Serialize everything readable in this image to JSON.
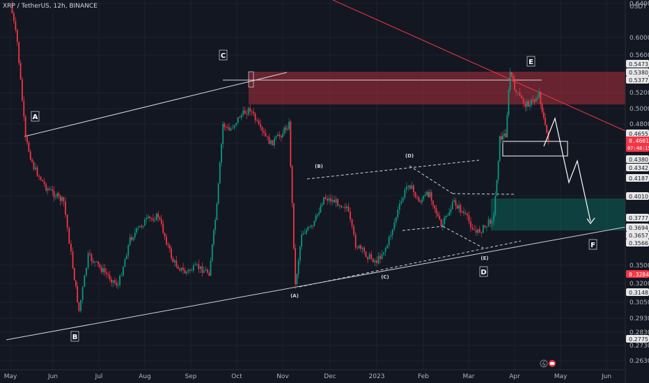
{
  "header": {
    "symbol_title": "XRP / TetherUS, 12h, BINANCE",
    "currency": "USDT"
  },
  "price_tags": {
    "last_price": "0.4601",
    "countdown": "07:48:15",
    "extra_red": "0.3284",
    "gray": [
      "0.5473",
      "0.5380",
      "0.5377",
      "0.4655",
      "0.4380",
      "0.4342",
      "0.4187",
      "0.4010",
      "0.3777",
      "0.3694",
      "0.3657",
      "0.3566",
      "0.3148",
      "0.2775"
    ]
  },
  "toolbar": {
    "flash_icon": "lightning-icon",
    "record_icon": "record-icon"
  },
  "chart_data": {
    "type": "candlestick",
    "title": "XRP / TetherUS, 12h, BINANCE",
    "xlabel": "",
    "ylabel": "USDT",
    "ylim": [
      0.26,
      0.65
    ],
    "x_tick_labels": [
      "May",
      "Jun",
      "Jul",
      "Aug",
      "Sep",
      "Oct",
      "Nov",
      "Dec",
      "2023",
      "Feb",
      "Mar",
      "Apr",
      "May",
      "Jun"
    ],
    "y_tick_labels": [
      "0.6400",
      "0.6000",
      "0.5600",
      "0.5200",
      "0.5000",
      "0.4800",
      "0.4520",
      "0.3900",
      "0.3500",
      "0.3200",
      "0.3050",
      "0.2930",
      "0.2830",
      "0.2730",
      "0.2630"
    ],
    "grid": true,
    "zones": [
      {
        "name": "resistance",
        "color": "#f23645",
        "from": 0.5075,
        "to": 0.5435
      },
      {
        "name": "support",
        "color": "#089981",
        "from": 0.3715,
        "to": 0.3985
      }
    ],
    "wave_labels": {
      "major": [
        "A",
        "B",
        "C",
        "D",
        "E",
        "F"
      ],
      "minor": [
        "(A)",
        "(B)",
        "(C)",
        "(D)",
        "(E)"
      ]
    },
    "price_path": [
      {
        "x": "2022-05-01",
        "c": 0.64
      },
      {
        "x": "2022-05-06",
        "c": 0.59
      },
      {
        "x": "2022-05-12",
        "c": 0.46
      },
      {
        "x": "2022-05-18",
        "c": 0.43
      },
      {
        "x": "2022-05-27",
        "c": 0.41
      },
      {
        "x": "2022-06-08",
        "c": 0.395
      },
      {
        "x": "2022-06-14",
        "c": 0.335
      },
      {
        "x": "2022-06-18",
        "c": 0.3
      },
      {
        "x": "2022-06-24",
        "c": 0.345
      },
      {
        "x": "2022-07-05",
        "c": 0.33
      },
      {
        "x": "2022-07-14",
        "c": 0.32
      },
      {
        "x": "2022-07-22",
        "c": 0.36
      },
      {
        "x": "2022-08-01",
        "c": 0.375
      },
      {
        "x": "2022-08-10",
        "c": 0.38
      },
      {
        "x": "2022-08-20",
        "c": 0.34
      },
      {
        "x": "2022-08-28",
        "c": 0.33
      },
      {
        "x": "2022-09-05",
        "c": 0.335
      },
      {
        "x": "2022-09-13",
        "c": 0.33
      },
      {
        "x": "2022-09-18",
        "c": 0.39
      },
      {
        "x": "2022-09-22",
        "c": 0.48
      },
      {
        "x": "2022-09-26",
        "c": 0.47
      },
      {
        "x": "2022-10-03",
        "c": 0.49
      },
      {
        "x": "2022-10-10",
        "c": 0.5
      },
      {
        "x": "2022-10-17",
        "c": 0.47
      },
      {
        "x": "2022-10-24",
        "c": 0.455
      },
      {
        "x": "2022-10-31",
        "c": 0.465
      },
      {
        "x": "2022-11-05",
        "c": 0.48
      },
      {
        "x": "2022-11-09",
        "c": 0.32
      },
      {
        "x": "2022-11-13",
        "c": 0.365
      },
      {
        "x": "2022-11-20",
        "c": 0.37
      },
      {
        "x": "2022-11-27",
        "c": 0.4
      },
      {
        "x": "2022-12-05",
        "c": 0.395
      },
      {
        "x": "2022-12-12",
        "c": 0.39
      },
      {
        "x": "2022-12-18",
        "c": 0.355
      },
      {
        "x": "2022-12-26",
        "c": 0.345
      },
      {
        "x": "2023-01-01",
        "c": 0.34
      },
      {
        "x": "2023-01-08",
        "c": 0.355
      },
      {
        "x": "2023-01-15",
        "c": 0.385
      },
      {
        "x": "2023-01-22",
        "c": 0.415
      },
      {
        "x": "2023-01-29",
        "c": 0.395
      },
      {
        "x": "2023-02-05",
        "c": 0.405
      },
      {
        "x": "2023-02-12",
        "c": 0.37
      },
      {
        "x": "2023-02-20",
        "c": 0.395
      },
      {
        "x": "2023-02-27",
        "c": 0.38
      },
      {
        "x": "2023-03-06",
        "c": 0.365
      },
      {
        "x": "2023-03-12",
        "c": 0.37
      },
      {
        "x": "2023-03-18",
        "c": 0.38
      },
      {
        "x": "2023-03-22",
        "c": 0.46
      },
      {
        "x": "2023-03-26",
        "c": 0.465
      },
      {
        "x": "2023-03-29",
        "c": 0.54
      },
      {
        "x": "2023-04-02",
        "c": 0.52
      },
      {
        "x": "2023-04-08",
        "c": 0.505
      },
      {
        "x": "2023-04-14",
        "c": 0.51
      },
      {
        "x": "2023-04-17",
        "c": 0.52
      },
      {
        "x": "2023-04-21",
        "c": 0.475
      },
      {
        "x": "2023-04-23",
        "c": 0.4601
      }
    ]
  }
}
